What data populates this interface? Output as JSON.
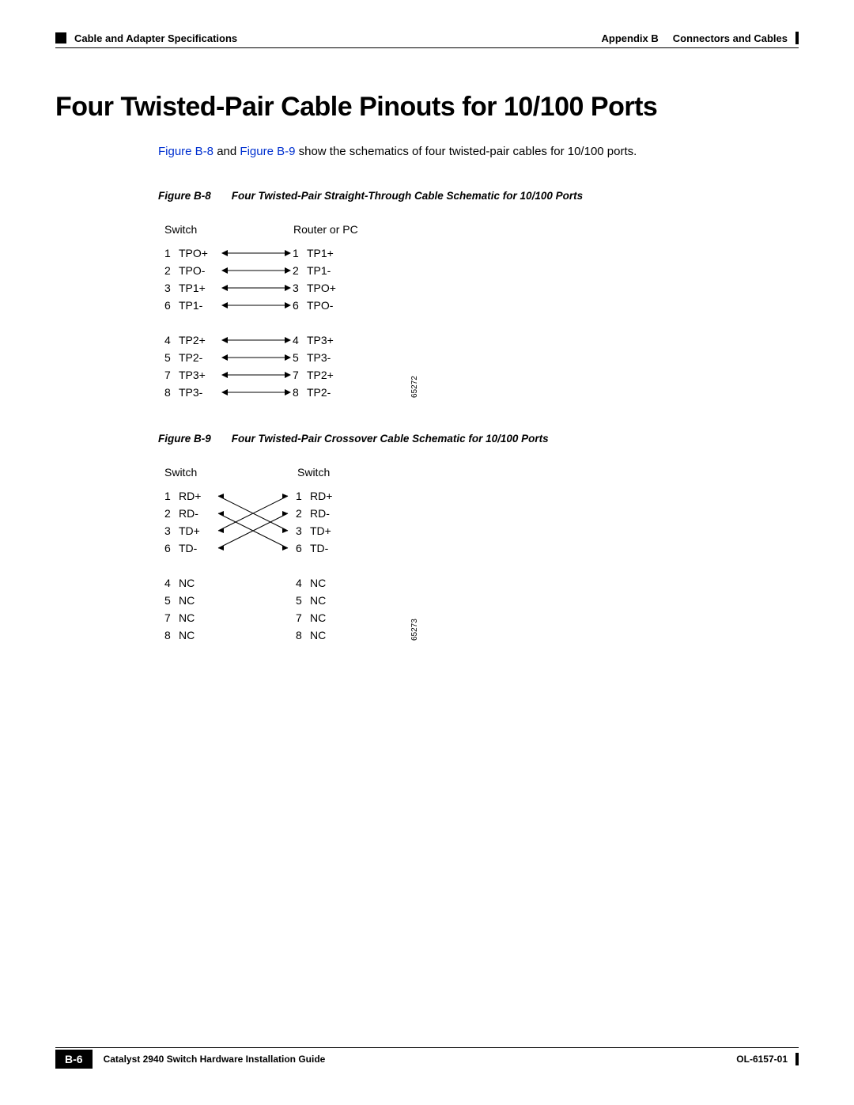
{
  "header": {
    "left": "Cable and Adapter Specifications",
    "right_prefix": "Appendix B",
    "right_title": "Connectors and Cables"
  },
  "title": "Four Twisted-Pair Cable Pinouts for 10/100 Ports",
  "intro": {
    "link1": "Figure B-8",
    "between": " and ",
    "link2": "Figure B-9",
    "after": " show the schematics of four twisted-pair cables for 10/100 ports."
  },
  "link_color": "#0030d0",
  "fig8": {
    "caption_id": "Figure B-8",
    "caption_text": "Four Twisted-Pair Straight-Through Cable Schematic for 10/100 Ports",
    "header_left": "Switch",
    "header_right": "Router or PC",
    "diagram_id": "65272",
    "rows_a": [
      {
        "lp": "1",
        "ll": "TPO+",
        "rp": "1",
        "rl": "TP1+"
      },
      {
        "lp": "2",
        "ll": "TPO-",
        "rp": "2",
        "rl": "TP1-"
      },
      {
        "lp": "3",
        "ll": "TP1+",
        "rp": "3",
        "rl": "TPO+"
      },
      {
        "lp": "6",
        "ll": "TP1-",
        "rp": "6",
        "rl": "TPO-"
      }
    ],
    "rows_b": [
      {
        "lp": "4",
        "ll": "TP2+",
        "rp": "4",
        "rl": "TP3+"
      },
      {
        "lp": "5",
        "ll": "TP2-",
        "rp": "5",
        "rl": "TP3-"
      },
      {
        "lp": "7",
        "ll": "TP3+",
        "rp": "7",
        "rl": "TP2+"
      },
      {
        "lp": "8",
        "ll": "TP3-",
        "rp": "8",
        "rl": "TP2-"
      }
    ]
  },
  "fig9": {
    "caption_id": "Figure B-9",
    "caption_text": "Four Twisted-Pair Crossover Cable Schematic for 10/100 Ports",
    "header_left": "Switch",
    "header_right": "Switch",
    "diagram_id": "65273",
    "rows_a": [
      {
        "lp": "1",
        "ll": "RD+",
        "rp": "1",
        "rl": "RD+"
      },
      {
        "lp": "2",
        "ll": "RD-",
        "rp": "2",
        "rl": "RD-"
      },
      {
        "lp": "3",
        "ll": "TD+",
        "rp": "3",
        "rl": "TD+"
      },
      {
        "lp": "6",
        "ll": "TD-",
        "rp": "6",
        "rl": "TD-"
      }
    ],
    "rows_b": [
      {
        "lp": "4",
        "ll": "NC",
        "rp": "4",
        "rl": "NC"
      },
      {
        "lp": "5",
        "ll": "NC",
        "rp": "5",
        "rl": "NC"
      },
      {
        "lp": "7",
        "ll": "NC",
        "rp": "7",
        "rl": "NC"
      },
      {
        "lp": "8",
        "ll": "NC",
        "rp": "8",
        "rl": "NC"
      }
    ]
  },
  "footer": {
    "guide": "Catalyst 2940 Switch Hardware Installation Guide",
    "page": "B-6",
    "doc": "OL-6157-01"
  }
}
